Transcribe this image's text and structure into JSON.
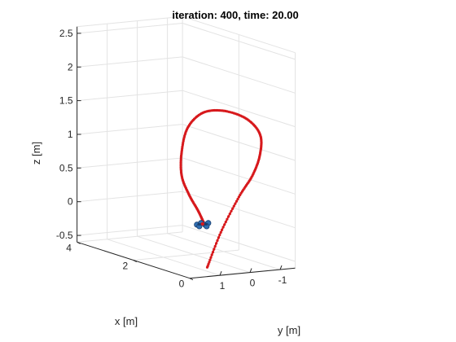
{
  "chart_data": {
    "type": "line",
    "projection": "3d",
    "title": "iteration: 400, time: 20.00",
    "xlabel": "x [m]",
    "ylabel": "y [m]",
    "zlabel": "z [m]",
    "xlim": [
      0,
      4
    ],
    "ylim": [
      -1.5,
      2
    ],
    "zlim": [
      -0.6,
      2.6
    ],
    "x_ticks": [
      "0",
      "2",
      "4"
    ],
    "y_ticks": [
      "1",
      "0",
      "-1"
    ],
    "z_ticks": [
      "-0.5",
      "0",
      "0.5",
      "1",
      "1.5",
      "2",
      "2.5"
    ],
    "grid": true,
    "series": [
      {
        "style": "dotted-line",
        "color": "#d7191c",
        "points": [
          [
            0.5,
            0.95,
            -0.55
          ],
          [
            0.5,
            0.5,
            -0.05
          ],
          [
            0.5,
            -0.1,
            0.45
          ],
          [
            0.5,
            -0.55,
            0.75
          ],
          [
            0.5,
            -0.8,
            1.05
          ],
          [
            0.5,
            -0.8,
            1.35
          ],
          [
            0.5,
            -0.35,
            1.6
          ],
          [
            0.5,
            0.4,
            1.75
          ],
          [
            0.5,
            1.1,
            1.75
          ],
          [
            0.5,
            1.6,
            1.55
          ],
          [
            0.5,
            1.8,
            1.2
          ],
          [
            0.5,
            1.8,
            0.85
          ],
          [
            0.5,
            1.55,
            0.55
          ],
          [
            0.5,
            1.25,
            0.3
          ],
          [
            0.5,
            1.05,
            0.1
          ]
        ]
      }
    ],
    "marker": {
      "label": "quadrotor",
      "color": "#2f6fb2",
      "position": [
        0.5,
        1.05,
        0.1
      ]
    }
  }
}
